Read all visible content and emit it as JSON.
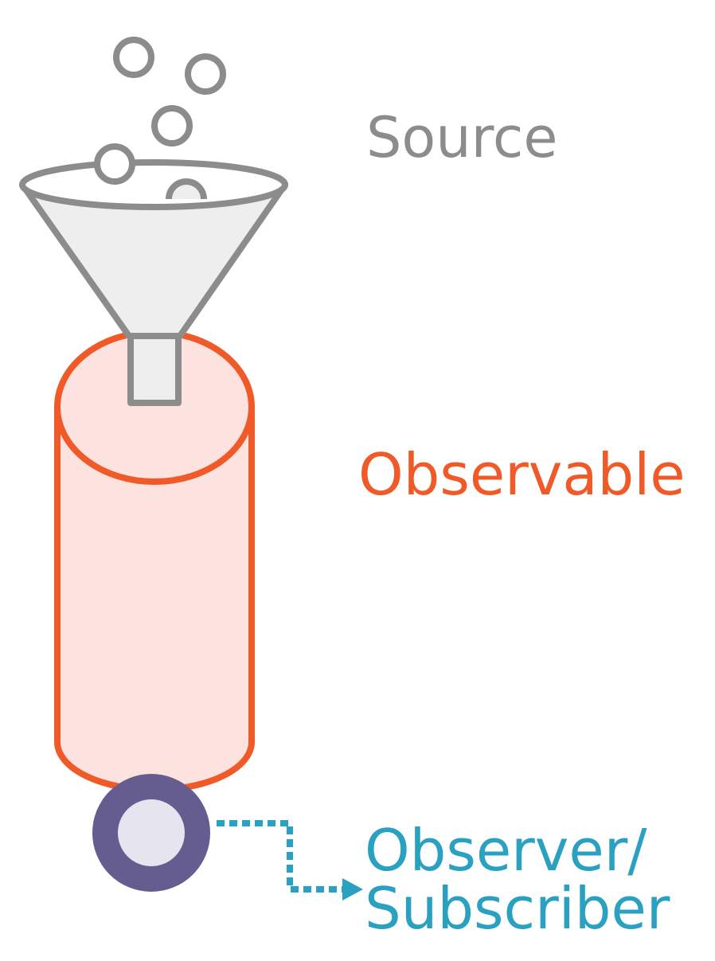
{
  "labels": {
    "source": "Source",
    "observable": "Observable",
    "observer_line1": "Observer/",
    "observer_line2": "Subscriber"
  },
  "colors": {
    "source": "#8c8c8c",
    "source_fill": "#eeeeee",
    "observable": "#f05a28",
    "observable_fill": "#fde3e0",
    "observer": "#2aa1c0",
    "observer_ring": "#655c8f",
    "observer_fill": "#e6e4ee"
  },
  "icons": {
    "funnel": "funnel-icon",
    "cylinder": "cylinder-icon",
    "observer_ring": "ring-icon",
    "arrow": "dotted-arrow-icon"
  }
}
